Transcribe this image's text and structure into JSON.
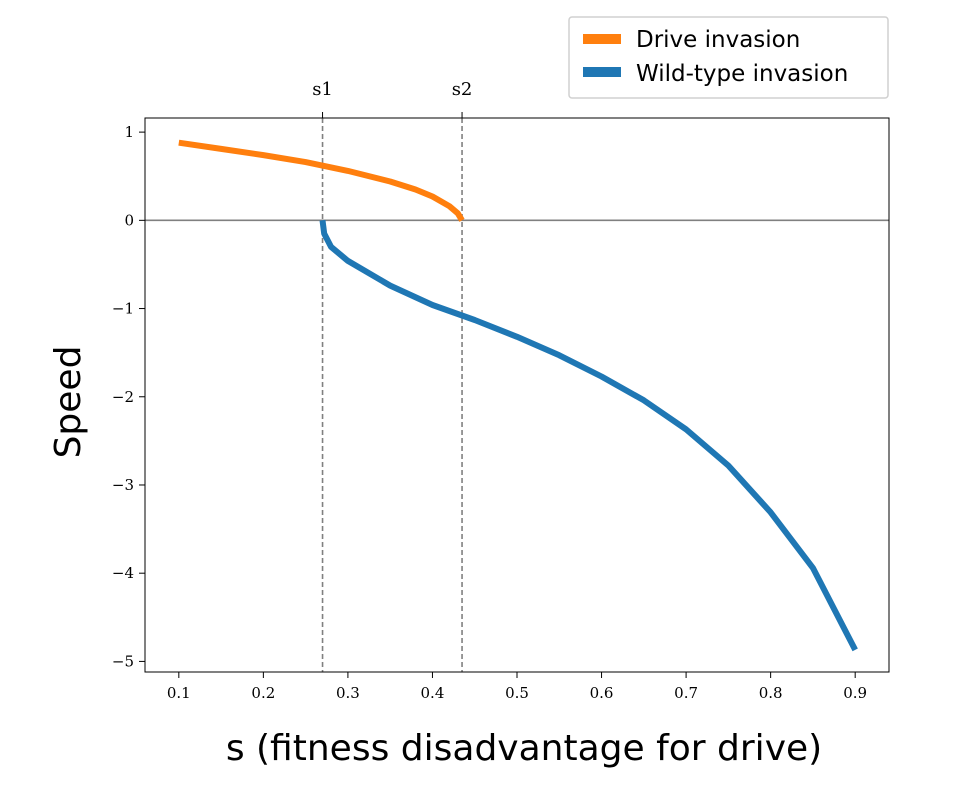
{
  "chart_data": {
    "type": "line",
    "title": "",
    "xlabel": "s (fitness disadvantage for drive)",
    "ylabel": "Speed",
    "xlim": [
      0.06,
      0.94
    ],
    "ylim": [
      -5.12,
      1.16
    ],
    "xticks": [
      0.1,
      0.2,
      0.3,
      0.4,
      0.5,
      0.6,
      0.7,
      0.8,
      0.9
    ],
    "xtick_labels": [
      "0.1",
      "0.2",
      "0.3",
      "0.4",
      "0.5",
      "0.6",
      "0.7",
      "0.8",
      "0.9"
    ],
    "yticks": [
      1,
      0,
      -1,
      -2,
      -3,
      -4,
      -5
    ],
    "ytick_labels": [
      "1",
      "0",
      "−1",
      "−2",
      "−3",
      "−4",
      "−5"
    ],
    "grid": false,
    "legend_position": "top-right, above plot",
    "zero_line": {
      "y": 0,
      "color": "#808080"
    },
    "reference_lines": [
      {
        "label": "s1",
        "x": 0.27,
        "style": "dashed",
        "color": "#808080"
      },
      {
        "label": "s2",
        "x": 0.435,
        "style": "dashed",
        "color": "#808080"
      }
    ],
    "series": [
      {
        "name": "Drive invasion",
        "color": "#ff7f0e",
        "x": [
          0.1,
          0.15,
          0.2,
          0.25,
          0.3,
          0.35,
          0.38,
          0.4,
          0.42,
          0.43,
          0.435
        ],
        "y": [
          0.88,
          0.81,
          0.74,
          0.66,
          0.56,
          0.44,
          0.35,
          0.27,
          0.16,
          0.08,
          0.0
        ]
      },
      {
        "name": "Wild-type invasion",
        "color": "#1f77b4",
        "x": [
          0.27,
          0.272,
          0.28,
          0.3,
          0.35,
          0.4,
          0.45,
          0.5,
          0.55,
          0.6,
          0.65,
          0.7,
          0.75,
          0.8,
          0.85,
          0.9
        ],
        "y": [
          0.0,
          -0.15,
          -0.3,
          -0.46,
          -0.74,
          -0.96,
          -1.13,
          -1.32,
          -1.53,
          -1.77,
          -2.04,
          -2.37,
          -2.78,
          -3.31,
          -3.94,
          -4.87
        ]
      }
    ]
  }
}
